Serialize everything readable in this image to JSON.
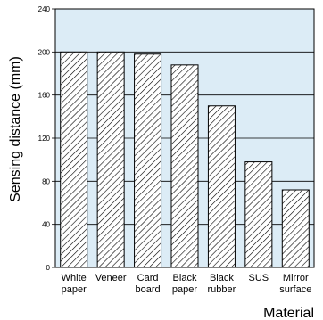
{
  "chart_data": {
    "type": "bar",
    "categories": [
      [
        "White",
        "paper"
      ],
      [
        "Veneer"
      ],
      [
        "Card",
        "board"
      ],
      [
        "Black",
        "paper"
      ],
      [
        "Black",
        "rubber"
      ],
      [
        "SUS"
      ],
      [
        "Mirror",
        "surface"
      ]
    ],
    "values": [
      200,
      200,
      198,
      188,
      150,
      98,
      72
    ],
    "xlabel": "Material",
    "ylabel": "Sensing distance (mm)",
    "ylim": [
      0,
      240
    ],
    "yticks": [
      0,
      40,
      80,
      120,
      160,
      200,
      240
    ],
    "grid": true,
    "colors": {
      "plot_background": "#dcecf6",
      "bar_fill": "#ffffff",
      "hatch": "#000000",
      "grid": "#000000"
    }
  }
}
